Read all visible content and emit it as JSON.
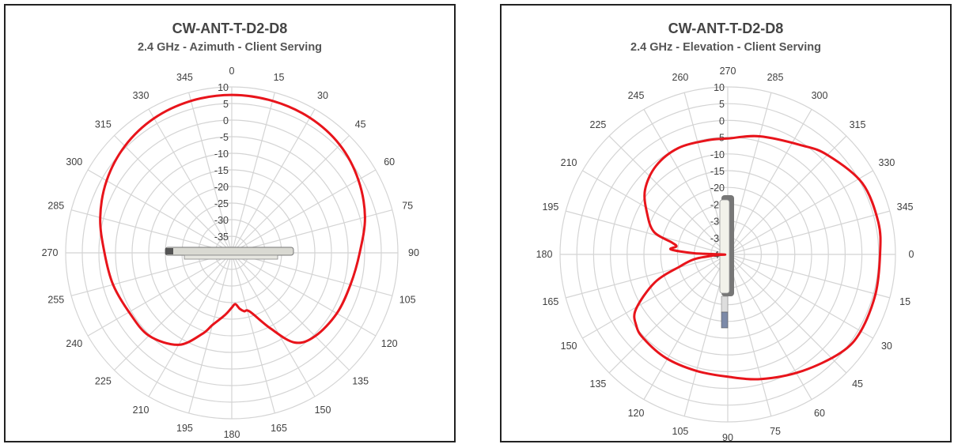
{
  "chart_data": [
    {
      "type": "polar-line",
      "title": "CW-ANT-T-D2-D8",
      "subtitle": "2.4 GHz - Azimuth - Client Serving",
      "radial_range": [
        -40,
        10
      ],
      "radial_ticks": [
        "10",
        "5",
        "0",
        "-5",
        "-10",
        "-15",
        "-20",
        "-25",
        "-30",
        "-35"
      ],
      "angle_direction": "clockwise",
      "zero_position": "top",
      "angle_ticks": [
        "0",
        "15",
        "30",
        "45",
        "60",
        "75",
        "90",
        "105",
        "120",
        "135",
        "150",
        "165",
        "180",
        "195",
        "210",
        "225",
        "240",
        "255",
        "270",
        "285",
        "300",
        "315",
        "330",
        "345"
      ],
      "grid": true,
      "line_color": "#e8141b",
      "points": [
        [
          0,
          7.6
        ],
        [
          15,
          7.4
        ],
        [
          30,
          7.0
        ],
        [
          45,
          6.0
        ],
        [
          60,
          4.0
        ],
        [
          75,
          1.5
        ],
        [
          90,
          -1.5
        ],
        [
          105,
          -3.0
        ],
        [
          120,
          -3.5
        ],
        [
          135,
          -4.5
        ],
        [
          145,
          -7.0
        ],
        [
          153,
          -14.5
        ],
        [
          163,
          -21.5
        ],
        [
          168,
          -22.0
        ],
        [
          172,
          -23.0
        ],
        [
          176,
          -24.5
        ],
        [
          180,
          -23.5
        ],
        [
          184,
          -22.0
        ],
        [
          188,
          -20.5
        ],
        [
          195,
          -17.5
        ],
        [
          200,
          -14.0
        ],
        [
          210,
          -8.0
        ],
        [
          225,
          -4.7
        ],
        [
          240,
          -4.3
        ],
        [
          255,
          -3.0
        ],
        [
          270,
          -1.7
        ],
        [
          285,
          1.0
        ],
        [
          300,
          3.5
        ],
        [
          315,
          5.5
        ],
        [
          330,
          6.8
        ],
        [
          345,
          7.4
        ]
      ]
    },
    {
      "type": "polar-line",
      "title": "CW-ANT-T-D2-D8",
      "subtitle": "2.4 GHz - Elevation - Client Serving",
      "radial_range": [
        -40,
        10
      ],
      "radial_ticks": [
        "10",
        "5",
        "0",
        "-5",
        "-10",
        "-15",
        "-20",
        "-25",
        "-30",
        "-35",
        "-40"
      ],
      "angle_direction": "clockwise",
      "zero_position": "right",
      "angle_ticks": [
        "0",
        "15",
        "30",
        "45",
        "60",
        "75",
        "90",
        "105",
        "120",
        "135",
        "150",
        "165",
        "180",
        "195",
        "210",
        "225",
        "245",
        "260",
        "270",
        "285",
        "300",
        "315",
        "330",
        "345"
      ],
      "grid": true,
      "line_color": "#e8141b",
      "points": [
        [
          0,
          5.4
        ],
        [
          15,
          5.6
        ],
        [
          30,
          5.8
        ],
        [
          41,
          4.7
        ],
        [
          58,
          1.2
        ],
        [
          75,
          -1.5
        ],
        [
          90,
          -3.5
        ],
        [
          105,
          -4.0
        ],
        [
          121,
          -4.0
        ],
        [
          135,
          -4.5
        ],
        [
          142,
          -5.4
        ],
        [
          149,
          -8.0
        ],
        [
          159,
          -16.7
        ],
        [
          166,
          -25.4
        ],
        [
          172,
          -30.0
        ],
        [
          176,
          -36.0
        ],
        [
          179,
          -39.0
        ],
        [
          182,
          -30.0
        ],
        [
          185,
          -23.0
        ],
        [
          189,
          -24.5
        ],
        [
          192,
          -23.0
        ],
        [
          197,
          -17.0
        ],
        [
          207,
          -13.0
        ],
        [
          218,
          -8.7
        ],
        [
          231,
          -6.0
        ],
        [
          245,
          -5.0
        ],
        [
          260,
          -5.4
        ],
        [
          270,
          -5.4
        ],
        [
          285,
          -3.5
        ],
        [
          304,
          -0.7
        ],
        [
          315,
          2.0
        ],
        [
          332,
          5.4
        ],
        [
          348,
          5.9
        ]
      ]
    }
  ]
}
